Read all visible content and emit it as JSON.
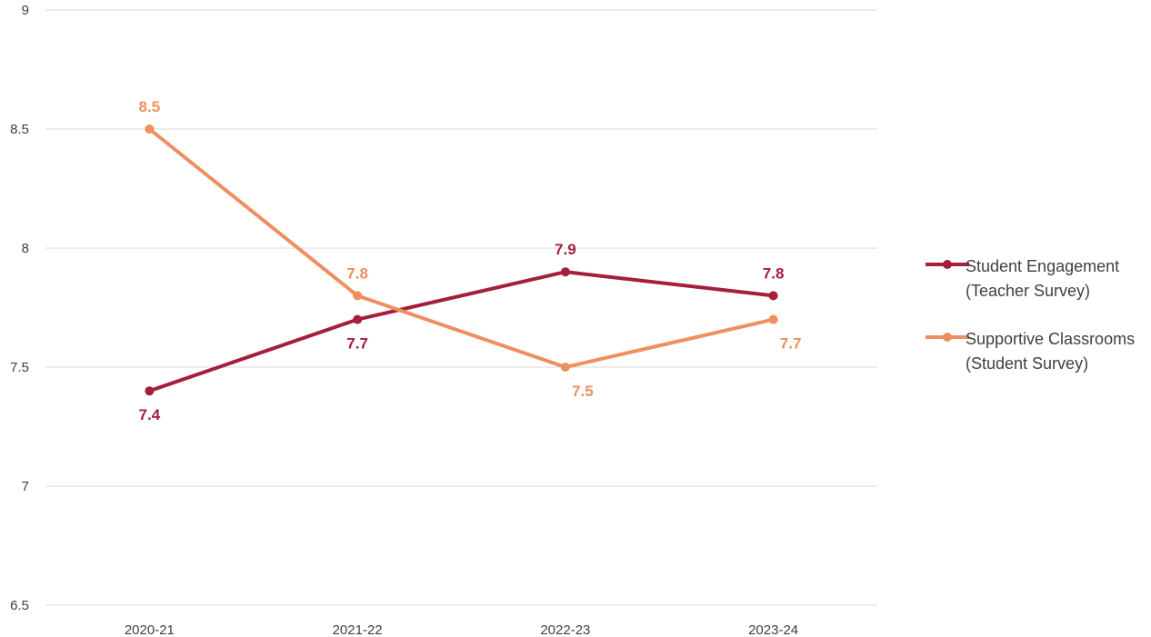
{
  "chart_data": {
    "type": "line",
    "categories": [
      "2020-21",
      "2021-22",
      "2022-23",
      "2023-24"
    ],
    "ylim": [
      6.5,
      9
    ],
    "yticks": [
      "6.5",
      "7",
      "7.5",
      "8",
      "8.5",
      "9"
    ],
    "grid": true,
    "legend_position": "right",
    "series": [
      {
        "name": "Student Engagement (Teacher Survey)",
        "legend_lines": [
          "Student Engagement",
          "(Teacher Survey)"
        ],
        "values": [
          7.4,
          7.7,
          7.9,
          7.8
        ],
        "labels": [
          "7.4",
          "7.7",
          "7.9",
          "7.8"
        ],
        "label_side": [
          "below",
          "below",
          "above",
          "above"
        ],
        "color": "#A51E3C"
      },
      {
        "name": "Supportive Classrooms (Student Survey)",
        "legend_lines": [
          "Supportive Classrooms",
          "(Student Survey)"
        ],
        "values": [
          8.5,
          7.8,
          7.5,
          7.7
        ],
        "labels": [
          "8.5",
          "7.8",
          "7.5",
          "7.7"
        ],
        "label_side": [
          "above",
          "above",
          "below",
          "below"
        ],
        "color": "#EE8F5F"
      }
    ]
  }
}
